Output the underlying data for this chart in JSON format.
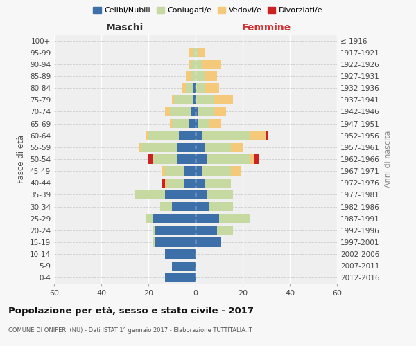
{
  "age_groups": [
    "0-4",
    "5-9",
    "10-14",
    "15-19",
    "20-24",
    "25-29",
    "30-34",
    "35-39",
    "40-44",
    "45-49",
    "50-54",
    "55-59",
    "60-64",
    "65-69",
    "70-74",
    "75-79",
    "80-84",
    "85-89",
    "90-94",
    "95-99",
    "100+"
  ],
  "birth_years": [
    "2012-2016",
    "2007-2011",
    "2002-2006",
    "1997-2001",
    "1992-1996",
    "1987-1991",
    "1982-1986",
    "1977-1981",
    "1972-1976",
    "1967-1971",
    "1962-1966",
    "1957-1961",
    "1952-1956",
    "1947-1951",
    "1942-1946",
    "1937-1941",
    "1932-1936",
    "1927-1931",
    "1922-1926",
    "1917-1921",
    "≤ 1916"
  ],
  "maschi": {
    "celibi": [
      13,
      10,
      13,
      17,
      17,
      18,
      10,
      13,
      5,
      5,
      8,
      8,
      7,
      3,
      2,
      1,
      1,
      0,
      0,
      0,
      0
    ],
    "coniugati": [
      0,
      0,
      0,
      1,
      1,
      3,
      5,
      13,
      7,
      8,
      10,
      15,
      13,
      7,
      9,
      8,
      3,
      2,
      2,
      1,
      0
    ],
    "vedovi": [
      0,
      0,
      0,
      0,
      0,
      0,
      0,
      0,
      1,
      1,
      0,
      1,
      1,
      1,
      2,
      1,
      2,
      2,
      1,
      2,
      0
    ],
    "divorziati": [
      0,
      0,
      0,
      0,
      0,
      0,
      0,
      0,
      1,
      0,
      2,
      0,
      0,
      0,
      0,
      0,
      0,
      0,
      0,
      0,
      0
    ]
  },
  "femmine": {
    "nubili": [
      0,
      0,
      0,
      11,
      9,
      10,
      6,
      5,
      4,
      3,
      5,
      4,
      3,
      1,
      1,
      0,
      0,
      0,
      0,
      0,
      0
    ],
    "coniugate": [
      0,
      0,
      0,
      0,
      7,
      13,
      10,
      11,
      11,
      12,
      18,
      11,
      20,
      5,
      7,
      8,
      4,
      4,
      3,
      1,
      0
    ],
    "vedove": [
      0,
      0,
      0,
      0,
      0,
      0,
      0,
      0,
      0,
      4,
      2,
      5,
      7,
      5,
      5,
      8,
      6,
      5,
      8,
      3,
      0
    ],
    "divorziate": [
      0,
      0,
      0,
      0,
      0,
      0,
      0,
      0,
      0,
      0,
      2,
      0,
      1,
      0,
      0,
      0,
      0,
      0,
      0,
      0,
      0
    ]
  },
  "colors": {
    "celibi": "#3d6fa8",
    "coniugati": "#c5d9a0",
    "vedovi": "#f5c97a",
    "divorziati": "#cc2222"
  },
  "xlim": 60,
  "title": "Popolazione per età, sesso e stato civile - 2017",
  "subtitle": "COMUNE DI ONIFERI (NU) - Dati ISTAT 1° gennaio 2017 - Elaborazione TUTTITALIA.IT",
  "ylabel": "Fasce di età",
  "y2label": "Anni di nascita",
  "legend_labels": [
    "Celibi/Nubili",
    "Coniugati/e",
    "Vedovi/e",
    "Divorziati/e"
  ],
  "maschi_label": "Maschi",
  "femmine_label": "Femmine",
  "bg_color": "#f7f7f7",
  "plot_bg": "#efefef"
}
